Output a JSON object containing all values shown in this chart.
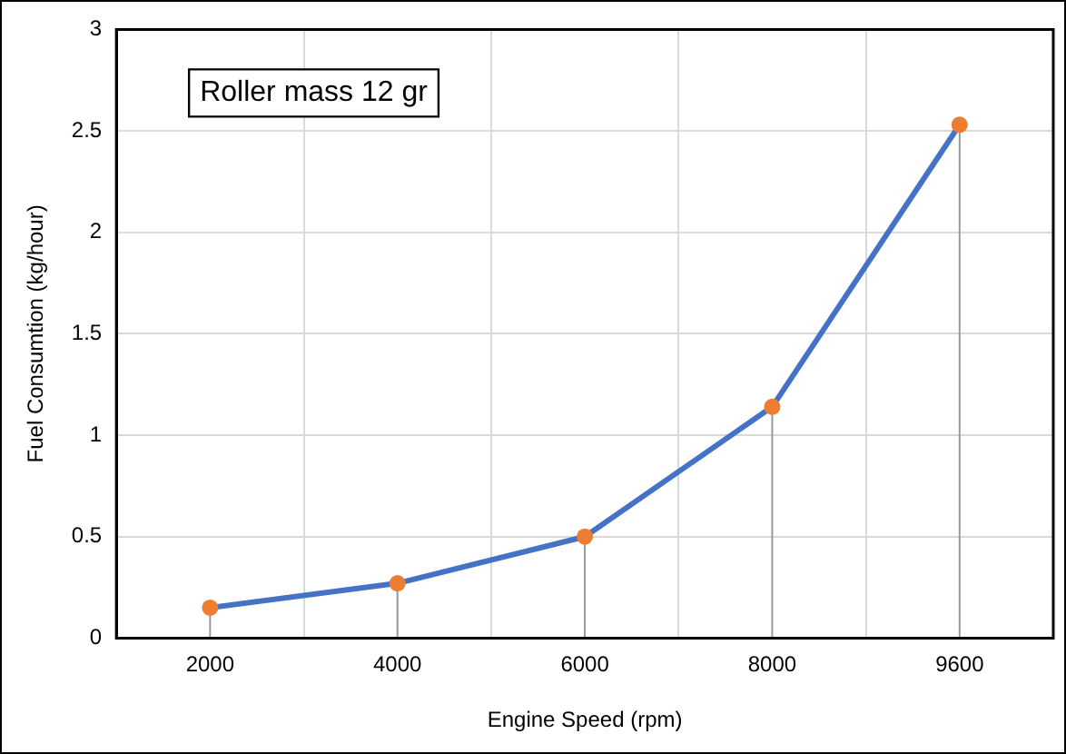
{
  "chart_data": {
    "type": "line",
    "xlabel": "Engine Speed (rpm)",
    "ylabel": "Fuel Consumtion (kg/hour)",
    "categories": [
      "2000",
      "4000",
      "6000",
      "8000",
      "9600"
    ],
    "series": [
      {
        "color": "#4472c4",
        "colors": [
          "#ed7d31",
          "#ed7d31",
          "#ed7d31",
          "#ed7d31",
          "#ed7d31"
        ],
        "values": [
          0.15,
          0.27,
          0.5,
          1.14,
          2.53
        ],
        "errors": [
          [
            0.15,
            0
          ],
          [
            0.27,
            0
          ],
          [
            0.5,
            0
          ],
          [
            1.14,
            0
          ],
          [
            2.53,
            0
          ]
        ]
      }
    ],
    "ylim": [
      0,
      3
    ],
    "yticks": [
      0,
      0.5,
      1,
      1.5,
      2,
      2.5,
      3
    ],
    "grid": true,
    "marker": "circle",
    "line_style": "solid",
    "legend": false,
    "annotations": [
      "Roller mass 12 gr"
    ]
  }
}
